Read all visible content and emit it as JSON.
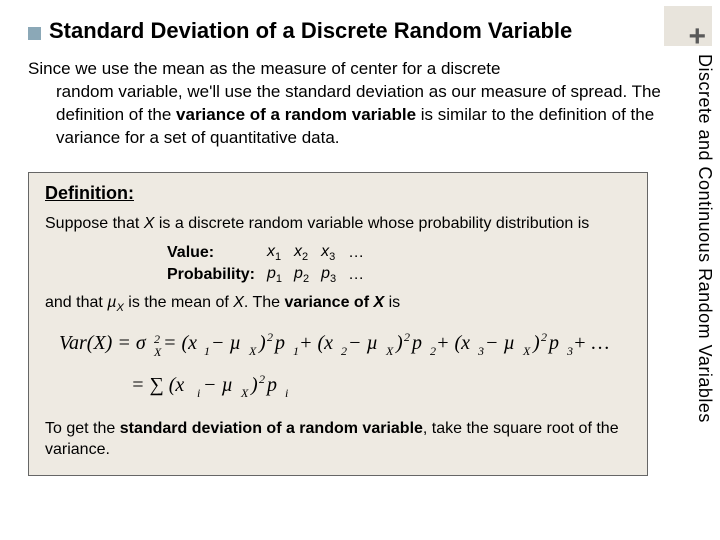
{
  "cornerPlus": "+",
  "sidebarLabel": "Discrete and Continuous Random Variables",
  "title": "Standard Deviation of a Discrete Random Variable",
  "intro_line1": "Since we use the mean as the measure of center for a discrete",
  "intro_line2": "random variable, we'll use the standard deviation as our measure of spread. The definition of the ",
  "intro_bold1": "variance of a random variable",
  "intro_line3": " is similar to the definition of the variance for a set of quantitative data.",
  "def_heading": "Definition:",
  "def_p1_a": "Suppose that ",
  "def_p1_x": "X",
  "def_p1_b": " is a discrete random variable whose probability distribution is",
  "row_value_label": "Value:",
  "row_prob_label": "Probability:",
  "vals": {
    "x1": "x",
    "x2": "x",
    "x3": "x",
    "dots": "…"
  },
  "subs": {
    "s1": "1",
    "s2": "2",
    "s3": "3"
  },
  "probs": {
    "p1": "p",
    "p2": "p",
    "p3": "p"
  },
  "def_p2_a": "and that ",
  "def_p2_mu": "µ",
  "def_p2_xs": "X",
  "def_p2_b": " is the mean of ",
  "def_p2_x2": "X",
  "def_p2_c": ". The ",
  "def_p2_bold": "variance of ",
  "def_p2_x3": "X",
  "def_p2_d": " is",
  "foot_a": "To get the ",
  "foot_bold": "standard deviation of a random variable",
  "foot_b": ", take the square root of the variance.",
  "svg": {
    "line1": "Var(X) = σ",
    "line1_sub": "X",
    "line1_sup": "2",
    "line1_eq": " = (x",
    "t1s": "1",
    "mu": " − µ",
    "muX": "X",
    "rp": ")",
    "sq": "2",
    "p": " p",
    "plus": " + (x",
    "dots": " + …",
    "line2a": "= ∑ (x",
    "line2i": "i",
    "line2b": " − µ",
    "line2c": ")",
    "line2p": " p",
    "line2pi": "i"
  }
}
